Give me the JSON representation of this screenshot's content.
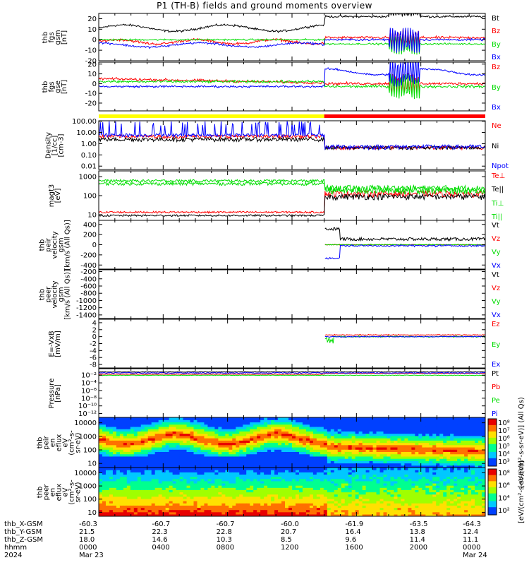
{
  "title": "P1 (TH-B) fields and ground moments overview",
  "chart_data": [
    {
      "id": "fgs_gsm",
      "type": "line",
      "ylabel": [
        "thb",
        "fgs",
        "gsm",
        "[nT]"
      ],
      "ylim": [
        -20,
        25
      ],
      "yticks": [
        "20",
        "10",
        "0",
        "-10",
        "-20"
      ],
      "ytick_values": [
        20,
        10,
        0,
        -10,
        -20
      ],
      "legend": [
        {
          "name": "Bt",
          "color": "#000000"
        },
        {
          "name": "Bz",
          "color": "#ff0000"
        },
        {
          "name": "By",
          "color": "#00dd00"
        },
        {
          "name": "Bx",
          "color": "#0000ff"
        }
      ]
    },
    {
      "id": "fgs_gse",
      "type": "line",
      "ylabel": [
        "thb",
        "fgs",
        "gse",
        "[nT]"
      ],
      "ylim": [
        -28,
        22
      ],
      "yticks": [
        "20",
        "10",
        "0",
        "-10",
        "-20"
      ],
      "ytick_values": [
        20,
        10,
        0,
        -10,
        -20
      ],
      "legend": [
        {
          "name": "Bz",
          "color": "#ff0000"
        },
        {
          "name": "By",
          "color": "#00dd00"
        },
        {
          "name": "Bx",
          "color": "#0000ff"
        }
      ]
    },
    {
      "id": "density",
      "type": "line",
      "log": true,
      "ylabel": [
        "Density",
        "[1/cc]",
        "[cm-3]"
      ],
      "ylim": [
        0.005,
        110
      ],
      "yticks": [
        "100.00",
        "10.00",
        "1.00",
        "0.10",
        "0.01"
      ],
      "ytick_values": [
        100,
        10,
        1,
        0.1,
        0.01
      ],
      "legend": [
        {
          "name": "Ne",
          "color": "#ff0000"
        },
        {
          "name": "Ni",
          "color": "#000000"
        },
        {
          "name": "Npot",
          "color": "#0000ff"
        }
      ]
    },
    {
      "id": "temperature",
      "type": "line",
      "log": true,
      "ylabel": [
        "magt3",
        "[eV]"
      ],
      "ylim": [
        5,
        2000
      ],
      "yticks": [
        "1000",
        "100",
        "10"
      ],
      "ytick_values": [
        1000,
        100,
        10
      ],
      "legend": [
        {
          "name": "Te⊥",
          "color": "#ff0000"
        },
        {
          "name": "Te||",
          "color": "#000000"
        },
        {
          "name": "Ti⊥",
          "color": "#00dd00"
        },
        {
          "name": "Ti||",
          "color": "#00dd00"
        }
      ]
    },
    {
      "id": "peir_velocity",
      "type": "line",
      "ylabel": [
        "thb",
        "peir",
        "velocity",
        "gsm",
        "[km/s (All Qs)]"
      ],
      "ylim": [
        -480,
        480
      ],
      "yticks": [
        "400",
        "200",
        "0",
        "-200",
        "-400"
      ],
      "ytick_values": [
        400,
        200,
        0,
        -200,
        -400
      ],
      "legend": [
        {
          "name": "Vt",
          "color": "#000000"
        },
        {
          "name": "Vz",
          "color": "#ff0000"
        },
        {
          "name": "Vy",
          "color": "#00dd00"
        },
        {
          "name": "Vx",
          "color": "#0000ff"
        }
      ]
    },
    {
      "id": "peer_velocity",
      "type": "line",
      "ylabel": [
        "thb",
        "peer",
        "velocity",
        "gsm",
        "[km/s (All Qs)]"
      ],
      "ylim": [
        -1500,
        -150
      ],
      "yticks": [
        "-200",
        "-400",
        "-600",
        "-800",
        "-1000",
        "-1200",
        "-1400"
      ],
      "ytick_values": [
        -200,
        -400,
        -600,
        -800,
        -1000,
        -1200,
        -1400
      ],
      "legend": [
        {
          "name": "Vt",
          "color": "#000000"
        },
        {
          "name": "Vz",
          "color": "#ff0000"
        },
        {
          "name": "Vy",
          "color": "#00dd00"
        },
        {
          "name": "Vx",
          "color": "#0000ff"
        }
      ]
    },
    {
      "id": "efield",
      "type": "line",
      "ylabel": [
        "E=-VxB",
        "[mV/m]"
      ],
      "ylim": [
        -9,
        5
      ],
      "yticks": [
        "4",
        "2",
        "0",
        "-2",
        "-4",
        "-6",
        "-8"
      ],
      "ytick_values": [
        4,
        2,
        0,
        -2,
        -4,
        -6,
        -8
      ],
      "legend": [
        {
          "name": "Ez",
          "color": "#ff0000"
        },
        {
          "name": "Ey",
          "color": "#00dd00"
        },
        {
          "name": "Ex",
          "color": "#0000ff"
        }
      ]
    },
    {
      "id": "pressure",
      "type": "line",
      "log": true,
      "ylabel": [
        "Pressure",
        "[nPa]"
      ],
      "ylim": [
        1e-13,
        0.5
      ],
      "yticks": [
        "10⁻²",
        "10⁻⁴",
        "10⁻⁶",
        "10⁻⁸",
        "10⁻¹⁰",
        "10⁻¹²"
      ],
      "ytick_values": [
        0.01,
        0.0001,
        1e-06,
        1e-08,
        1e-10,
        1e-12
      ],
      "legend": [
        {
          "name": "Pt",
          "color": "#000000"
        },
        {
          "name": "Pb",
          "color": "#ff0000"
        },
        {
          "name": "Pe",
          "color": "#00dd00"
        },
        {
          "name": "Pi",
          "color": "#0000ff"
        }
      ]
    },
    {
      "id": "peir_spec",
      "type": "heatmap",
      "log": true,
      "ylabel": [
        "thb",
        "peir",
        "en",
        "eflux",
        "eV",
        "(cm²-s-",
        "sr-eV)"
      ],
      "ylim": [
        5,
        25000
      ],
      "yticks": [
        "10000",
        "1000",
        "100",
        "10"
      ],
      "ytick_values": [
        10000,
        1000,
        100,
        10
      ],
      "colorbar": {
        "ticks": [
          "10⁸",
          "10⁷",
          "10⁶",
          "10⁵",
          "10⁴",
          "10³"
        ],
        "label": "[eV/(cm²-s-sr-eV)] (All Qs)"
      }
    },
    {
      "id": "peer_spec",
      "type": "heatmap",
      "log": true,
      "ylabel": [
        "thb",
        "peer",
        "en",
        "eflux",
        "eV",
        "(cm²-s-",
        "sr-eV)"
      ],
      "ylim": [
        5,
        25000
      ],
      "yticks": [
        "10000",
        "1000",
        "100",
        "10"
      ],
      "ytick_values": [
        10000,
        1000,
        100,
        10
      ],
      "colorbar": {
        "ticks": [
          "10⁸",
          "10⁶",
          "10⁴",
          "10²"
        ],
        "label": "[eV/(cm²-s-sr-eV)]"
      }
    }
  ],
  "mode_bar": {
    "yellow_until_hour": 14.0,
    "colors": [
      "#ffff00",
      "#ff0000"
    ]
  },
  "footer": {
    "row_labels": [
      "thb_X-GSM",
      "thb_Y-GSM",
      "thb_Z-GSM",
      "hhmm",
      "2024"
    ],
    "columns": [
      {
        "hour": 0,
        "values": [
          "-60.3",
          "21.5",
          "18.0",
          "0000",
          "Mar 23"
        ]
      },
      {
        "hour": 4,
        "values": [
          "-60.7",
          "22.3",
          "14.6",
          "0400",
          ""
        ]
      },
      {
        "hour": 8,
        "values": [
          "-60.7",
          "22.8",
          "10.3",
          "0800",
          ""
        ]
      },
      {
        "hour": 12,
        "values": [
          "-60.0",
          "20.7",
          "8.5",
          "1200",
          ""
        ]
      },
      {
        "hour": 16,
        "values": [
          "-61.9",
          "16.4",
          "9.6",
          "1600",
          ""
        ]
      },
      {
        "hour": 20,
        "values": [
          "-63.5",
          "13.8",
          "11.4",
          "2000",
          ""
        ]
      },
      {
        "hour": 24,
        "values": [
          "-64.3",
          "12.4",
          "11.1",
          "0000",
          "Mar 24"
        ]
      }
    ]
  }
}
